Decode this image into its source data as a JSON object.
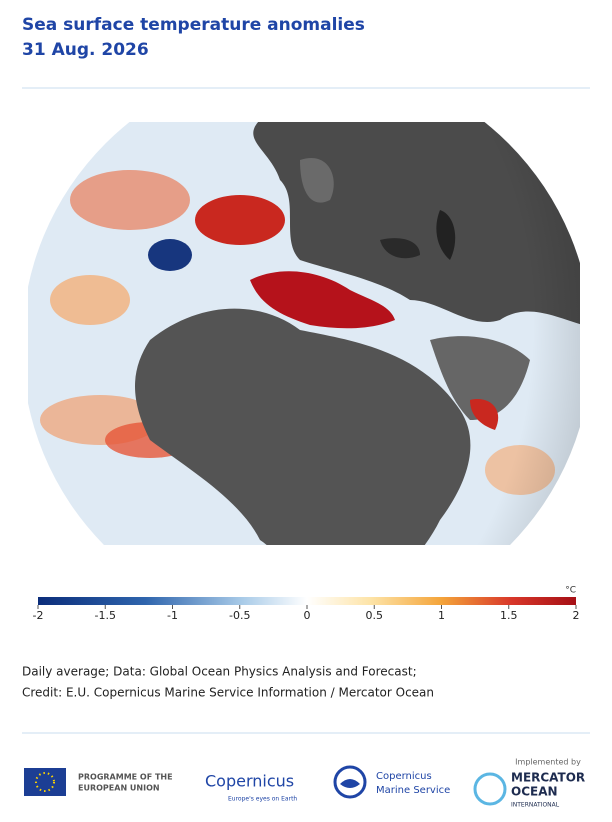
{
  "header": {
    "title": "Sea surface temperature anomalies",
    "date": "31 Aug. 2026"
  },
  "colorbar": {
    "unit": "°C",
    "lim": [
      -2,
      2
    ],
    "ticks": [
      -2,
      -1.5,
      -1,
      -0.5,
      0,
      0.5,
      1,
      1.5,
      2
    ]
  },
  "caption": [
    "Daily average; Data: Global Ocean Physics Analysis and Forecast;",
    "Credit: E.U. Copernicus Marine Service Information / Mercator Ocean"
  ],
  "logos": {
    "eu": [
      "PROGRAMME OF THE",
      "EUROPEAN UNION"
    ],
    "copernicus": {
      "name": "Copernicus",
      "tagline": "Europe's eyes on Earth"
    },
    "marine": [
      "Copernicus",
      "Marine Service"
    ],
    "mercator": {
      "intro": "Implemented by",
      "lines": [
        "MERCATOR",
        "OCEAN",
        "INTERNATIONAL"
      ]
    }
  }
}
